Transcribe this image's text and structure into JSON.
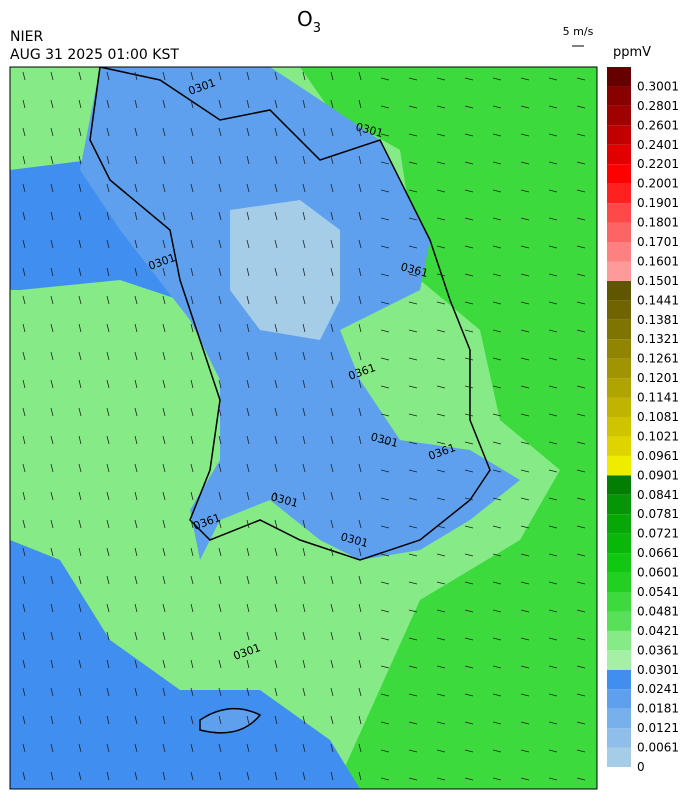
{
  "header": {
    "title": "O",
    "title_subscript": "3",
    "organization": "NIER",
    "timestamp": "AUG 31 2025 01:00 KST",
    "wind_scale": "5 m/s",
    "unit": "ppmV"
  },
  "colorbar": {
    "levels": [
      0,
      0.0061,
      0.0121,
      0.0181,
      0.0241,
      0.0301,
      0.0361,
      0.0421,
      0.0481,
      0.0541,
      0.0601,
      0.0661,
      0.0721,
      0.0781,
      0.0841,
      0.0901,
      0.0961,
      0.1021,
      0.1081,
      0.1141,
      0.1201,
      0.1261,
      0.1321,
      0.1381,
      0.1441,
      0.1501,
      0.1601,
      0.1701,
      0.1801,
      0.1901,
      0.2001,
      0.2201,
      0.2401,
      0.2601,
      0.2801,
      0.3001
    ],
    "colors": [
      "#a6cde8",
      "#8ebee9",
      "#78b0eb",
      "#5ea0ee",
      "#3f8ef0",
      "#a6f0a6",
      "#86ea86",
      "#58e058",
      "#3cda3c",
      "#22d022",
      "#10c810",
      "#08b808",
      "#06a806",
      "#049604",
      "#027e02",
      "#f0ec00",
      "#e0d400",
      "#d0c400",
      "#c0b400",
      "#b0a400",
      "#a09400",
      "#908400",
      "#807400",
      "#706400",
      "#605600",
      "#ff9a9a",
      "#ff8080",
      "#ff6464",
      "#ff4848",
      "#ff2020",
      "#ff0000",
      "#e00000",
      "#c00000",
      "#a00000",
      "#880000",
      "#660000"
    ]
  },
  "map": {
    "contour_labels": [
      "0301",
      "0301",
      "0301",
      "0361",
      "0361",
      "0301",
      "0361",
      "0301",
      "0361",
      "0301",
      "0301"
    ]
  }
}
